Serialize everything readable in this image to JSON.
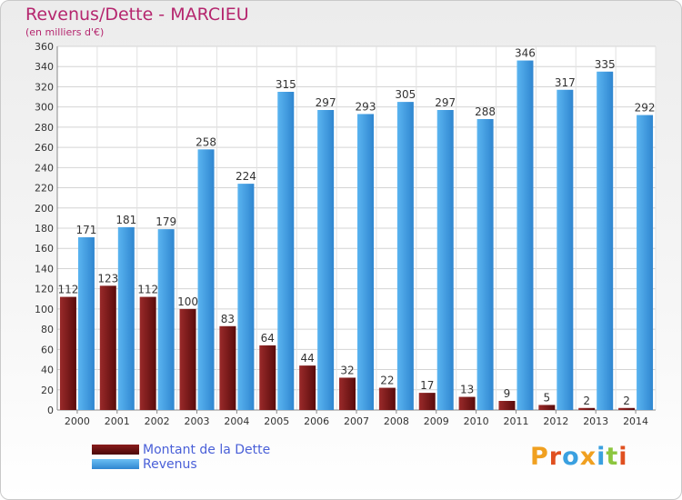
{
  "chart_data": {
    "type": "bar",
    "title": "Revenus/Dette - MARCIEU",
    "subtitle": "(en milliers d'€)",
    "categories": [
      "2000",
      "2001",
      "2002",
      "2003",
      "2004",
      "2005",
      "2006",
      "2007",
      "2008",
      "2009",
      "2010",
      "2011",
      "2012",
      "2013",
      "2014"
    ],
    "series": [
      {
        "name": "Montant de la Dette",
        "values": [
          112,
          123,
          112,
          100,
          83,
          64,
          44,
          32,
          22,
          17,
          13,
          9,
          5,
          2,
          2
        ],
        "color": "#7a1515"
      },
      {
        "name": "Revenus",
        "values": [
          171,
          181,
          179,
          258,
          224,
          315,
          297,
          293,
          305,
          297,
          288,
          346,
          317,
          335,
          292
        ],
        "color": "#4aa3e8"
      }
    ],
    "ylim": [
      0,
      360
    ],
    "yticks": [
      0,
      20,
      40,
      60,
      80,
      100,
      120,
      140,
      160,
      180,
      200,
      220,
      240,
      260,
      280,
      300,
      320,
      340,
      360
    ],
    "grid": true,
    "legend_position": "bottom-left"
  },
  "logo": {
    "text": "Proxiti",
    "letter_colors": [
      "#f0a020",
      "#e05020",
      "#3aa0e0",
      "#f0a020",
      "#3aa0e0",
      "#8cc63f",
      "#e05020"
    ]
  }
}
